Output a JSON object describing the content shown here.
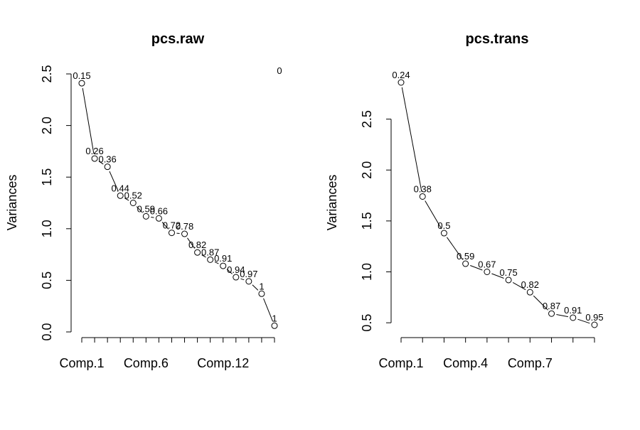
{
  "chart_data": [
    {
      "type": "line",
      "title": "pcs.raw",
      "xlabel": "",
      "ylabel": "Variances",
      "categories": [
        "Comp.1",
        "Comp.2",
        "Comp.3",
        "Comp.4",
        "Comp.5",
        "Comp.6",
        "Comp.7",
        "Comp.8",
        "Comp.9",
        "Comp.10",
        "Comp.11",
        "Comp.12",
        "Comp.13",
        "Comp.14",
        "Comp.15",
        "Comp.16"
      ],
      "x_tick_labels": [
        "Comp.1",
        "Comp.6",
        "Comp.12"
      ],
      "x_tick_label_index": [
        0,
        5,
        11
      ],
      "values": [
        2.41,
        1.68,
        1.6,
        1.32,
        1.25,
        1.12,
        1.1,
        0.96,
        0.95,
        0.77,
        0.7,
        0.64,
        0.53,
        0.49,
        0.37,
        0.06
      ],
      "point_labels": [
        "0.15",
        "0.26",
        "0.36",
        "0.44",
        "0.52",
        "0.59",
        "0.66",
        "0.72",
        "0.78",
        "0.82",
        "0.87",
        "0.91",
        "0.94",
        "0.97",
        "1",
        "1"
      ],
      "extra_label": "0",
      "yticks": [
        0.0,
        0.5,
        1.0,
        1.5,
        2.0,
        2.5
      ],
      "ytick_labels": [
        "0.0",
        "0.5",
        "1.0",
        "1.5",
        "2.0",
        "2.5"
      ],
      "ylim": [
        0,
        2.5
      ],
      "grid": false,
      "legend": "none"
    },
    {
      "type": "line",
      "title": "pcs.trans",
      "xlabel": "",
      "ylabel": "Variances",
      "categories": [
        "Comp.1",
        "Comp.2",
        "Comp.3",
        "Comp.4",
        "Comp.5",
        "Comp.6",
        "Comp.7",
        "Comp.8",
        "Comp.9",
        "Comp.10"
      ],
      "x_tick_labels": [
        "Comp.1",
        "Comp.4",
        "Comp.7"
      ],
      "x_tick_label_index": [
        0,
        3,
        6
      ],
      "values": [
        2.86,
        1.74,
        1.38,
        1.08,
        1.0,
        0.92,
        0.8,
        0.59,
        0.55,
        0.48
      ],
      "point_labels": [
        "0.24",
        "0.38",
        "0.5",
        "0.59",
        "0.67",
        "0.75",
        "0.82",
        "0.87",
        "0.91",
        "0.95"
      ],
      "yticks": [
        0.5,
        1.0,
        1.5,
        2.0,
        2.5
      ],
      "ytick_labels": [
        "0.5",
        "1.0",
        "1.5",
        "2.0",
        "2.5"
      ],
      "ylim": [
        0.48,
        2.86
      ],
      "grid": false,
      "legend": "none"
    }
  ]
}
